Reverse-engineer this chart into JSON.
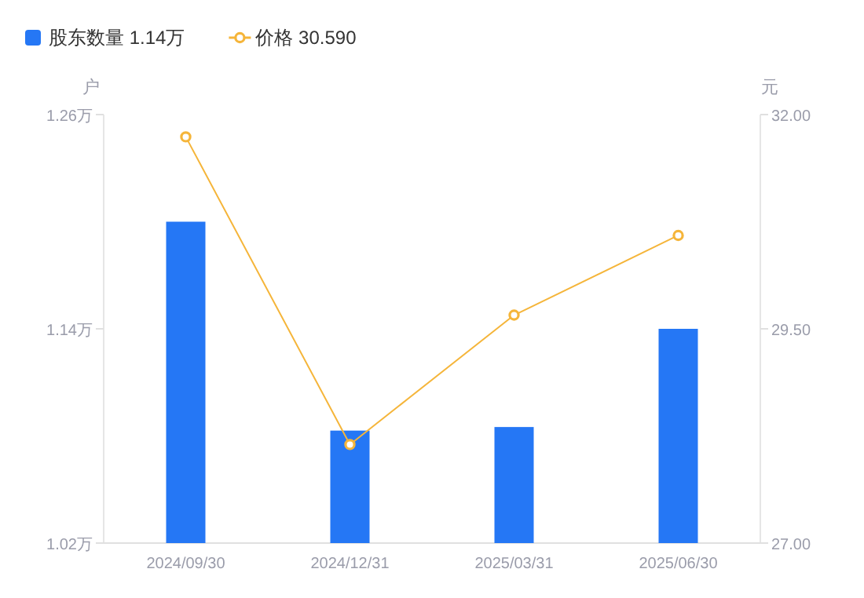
{
  "chart_data": {
    "type": "bar",
    "categories": [
      "2024/09/30",
      "2024/12/31",
      "2025/03/31",
      "2025/06/30"
    ],
    "ylabel": "户",
    "y2label": "元",
    "series": [
      {
        "name": "股东数量 1.14万",
        "color": "#2577f5",
        "values": [
          1.2,
          1.083,
          1.085,
          1.14
        ]
      },
      {
        "name": "价格 30.590",
        "type": "line",
        "axis": "y2",
        "color": "#f5b53a",
        "marker": "circle",
        "values": [
          31.74,
          28.15,
          29.66,
          30.59
        ]
      }
    ],
    "ylim": [
      1.02,
      1.26
    ],
    "yticks": [
      {
        "value": 1.02,
        "label": "1.02万"
      },
      {
        "value": 1.14,
        "label": "1.14万"
      },
      {
        "value": 1.26,
        "label": "1.26万"
      }
    ],
    "y2lim": [
      27,
      32
    ],
    "y2ticks": [
      {
        "value": 27,
        "label": "27.00"
      },
      {
        "value": 29.5,
        "label": "29.50"
      },
      {
        "value": 32,
        "label": "32.00"
      }
    ],
    "grid": false,
    "legend": "top left"
  }
}
